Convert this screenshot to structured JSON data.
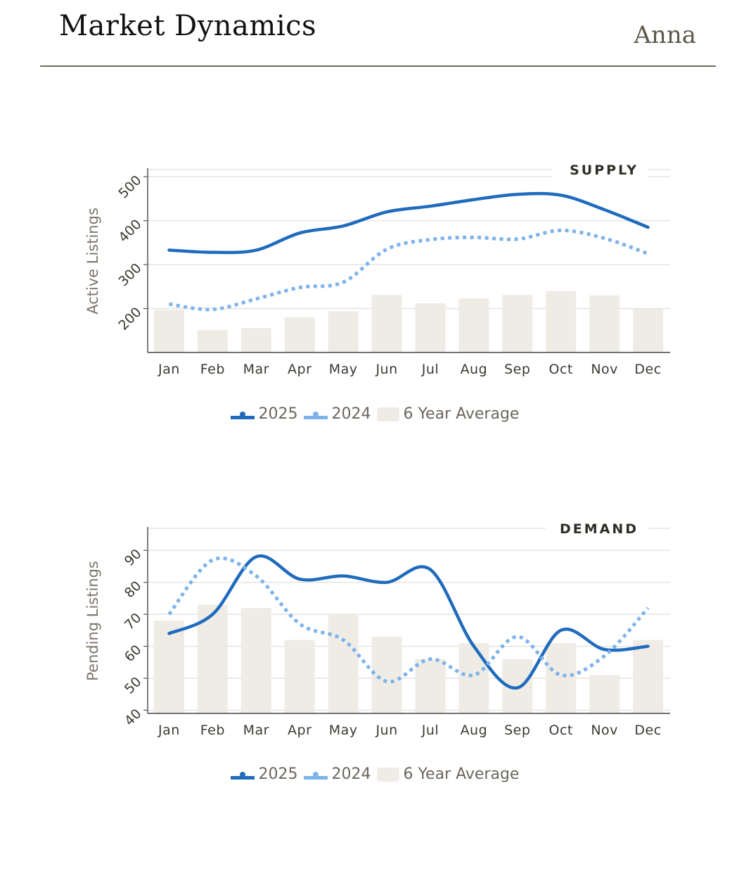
{
  "header": {
    "title": "Market Dynamics",
    "author": "Anna"
  },
  "colors": {
    "series_2025": "#1f6bbd",
    "series_2024": "#7eb3ea",
    "average_bar": "#efece6",
    "rule": "#6e6a58"
  },
  "chart_data": [
    {
      "type": "bar+line",
      "title": "SUPPLY",
      "xlabel": "",
      "ylabel": "Active Listings",
      "categories": [
        "Jan",
        "Feb",
        "Mar",
        "Apr",
        "May",
        "Jun",
        "Jul",
        "Aug",
        "Sep",
        "Oct",
        "Nov",
        "Dec"
      ],
      "yticks": [
        200,
        300,
        400,
        500
      ],
      "ylim": [
        100,
        510
      ],
      "grid": true,
      "legend_position": "bottom-center",
      "series": [
        {
          "name": "2025",
          "kind": "line",
          "style": "solid",
          "values": [
            333,
            328,
            333,
            372,
            388,
            420,
            433,
            448,
            460,
            458,
            425,
            385
          ]
        },
        {
          "name": "2024",
          "kind": "line",
          "style": "dotted",
          "values": [
            210,
            198,
            222,
            248,
            260,
            335,
            357,
            362,
            358,
            378,
            360,
            325
          ]
        },
        {
          "name": "6 Year Average",
          "kind": "bar",
          "values": [
            197,
            151,
            156,
            180,
            194,
            231,
            212,
            223,
            231,
            240,
            230,
            200
          ]
        }
      ],
      "legend": [
        "2025",
        "2024",
        "6 Year Average"
      ]
    },
    {
      "type": "bar+line",
      "title": "DEMAND",
      "xlabel": "",
      "ylabel": "Pending Listings",
      "categories": [
        "Jan",
        "Feb",
        "Mar",
        "Apr",
        "May",
        "Jun",
        "Jul",
        "Aug",
        "Sep",
        "Oct",
        "Nov",
        "Dec"
      ],
      "yticks": [
        40,
        50,
        60,
        70,
        80,
        90
      ],
      "ylim": [
        39,
        96
      ],
      "grid": true,
      "legend_position": "bottom-center",
      "series": [
        {
          "name": "2025",
          "kind": "line",
          "style": "solid",
          "values": [
            64,
            70,
            88,
            81,
            82,
            80,
            84,
            60,
            47,
            65,
            59,
            60
          ]
        },
        {
          "name": "2024",
          "kind": "line",
          "style": "dotted",
          "values": [
            70,
            87,
            82,
            67,
            62,
            49,
            56,
            51,
            63,
            51,
            57,
            72
          ]
        },
        {
          "name": "6 Year Average",
          "kind": "bar",
          "values": [
            68,
            73,
            72,
            62,
            70,
            63,
            56,
            61,
            56,
            61,
            51,
            62
          ]
        }
      ],
      "legend": [
        "2025",
        "2024",
        "6 Year Average"
      ]
    }
  ]
}
